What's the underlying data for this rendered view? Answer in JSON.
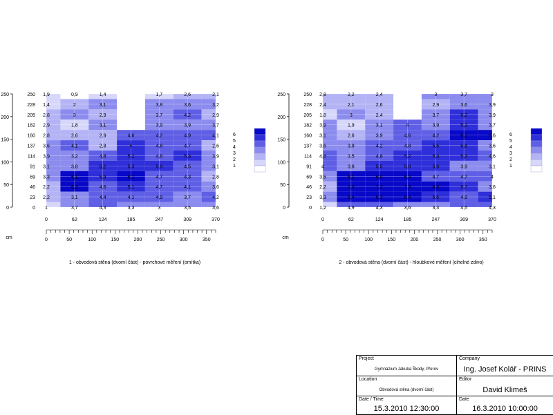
{
  "chart_data": [
    {
      "type": "heatmap",
      "title": "1 - obvodová stěna (dvorní část) - povrchové měření (omítka)",
      "ylabel_ticks": [
        "0",
        "50",
        "100",
        "150",
        "200",
        "250"
      ],
      "row_labels": [
        "250",
        "228",
        "205",
        "182",
        "160",
        "137",
        "114",
        "91",
        "69",
        "46",
        "23",
        "0"
      ],
      "col_labels": [
        "0",
        "62",
        "124",
        "185",
        "247",
        "309",
        "370"
      ],
      "x_unit": "cm",
      "x_ticks": [
        "0",
        "50",
        "100",
        "150",
        "200",
        "250",
        "300",
        "350"
      ],
      "legend_levels": [
        "6",
        "5",
        "4",
        "3",
        "2",
        "1"
      ],
      "values": [
        [
          "1,9",
          "0,9",
          "1,4",
          "",
          "1,7",
          "2,6",
          "2,1"
        ],
        [
          "1,4",
          "2",
          "3,1",
          "",
          "3,8",
          "3,6",
          "3,2"
        ],
        [
          "2,8",
          "3",
          "2,9",
          "",
          "3,7",
          "4,2",
          "2,9"
        ],
        [
          "2,9",
          "1,8",
          "3,1",
          "",
          "3,9",
          "3,9",
          "3,7"
        ],
        [
          "2,8",
          "2,6",
          "2,9",
          "4,6",
          "4,2",
          "4,9",
          "4,1"
        ],
        [
          "3,6",
          "4,1",
          "2,8",
          "5",
          "4,8",
          "4,7",
          "2,6"
        ],
        [
          "3,9",
          "3,2",
          "4,8",
          "5,2",
          "4,8",
          "5,3",
          "3,9"
        ],
        [
          "3,1",
          "3,8",
          "5,2",
          "5,3",
          "5,9",
          "4,5",
          "3,1"
        ],
        [
          "3,3",
          "6,1",
          "5,9",
          "6,1",
          "4,7",
          "4,3",
          "2,8"
        ],
        [
          "2,2",
          "6,3",
          "4,6",
          "5,1",
          "4,7",
          "4,1",
          "3,6"
        ],
        [
          "2,2",
          "3,1",
          "4,4",
          "4,1",
          "4,9",
          "3,7",
          "4,2"
        ],
        [
          "1",
          "3,7",
          "4,3",
          "3,3",
          "3",
          "3,5",
          "3,6"
        ]
      ]
    },
    {
      "type": "heatmap",
      "title": "2 - obvodová stěna (dvorní část) - hloubkové měření (cihelné zdivo)",
      "ylabel_ticks": [
        "0",
        "50",
        "100",
        "150",
        "200",
        "250"
      ],
      "row_labels": [
        "250",
        "228",
        "205",
        "182",
        "160",
        "137",
        "114",
        "91",
        "69",
        "46",
        "23",
        "0"
      ],
      "col_labels": [
        "0",
        "62",
        "124",
        "185",
        "247",
        "309",
        "370"
      ],
      "x_unit": "cm",
      "x_ticks": [
        "0",
        "50",
        "100",
        "150",
        "200",
        "250",
        "300",
        "350"
      ],
      "legend_levels": [
        "6",
        "5",
        "4",
        "3",
        "2",
        "1"
      ],
      "values": [
        [
          "2,8",
          "2,2",
          "2,4",
          "",
          "3",
          "3,7",
          "3"
        ],
        [
          "2,4",
          "2,1",
          "2,6",
          "",
          "2,9",
          "3,6",
          "3,9"
        ],
        [
          "1,8",
          "3",
          "2,4",
          "",
          "3,7",
          "5,2",
          "3,9"
        ],
        [
          "3,9",
          "1,9",
          "3,1",
          "4",
          "3,9",
          "5,1",
          "3,7"
        ],
        [
          "3,1",
          "2,6",
          "3,9",
          "4,6",
          "4,2",
          "6,1",
          "6,6"
        ],
        [
          "3,6",
          "3,9",
          "4,2",
          "4,8",
          "5,5",
          "5,8",
          "3,6"
        ],
        [
          "4,8",
          "3,5",
          "4,8",
          "5,2",
          "5,3",
          "5,3",
          "4,6"
        ],
        [
          "4",
          "3,8",
          "5,5",
          "5,8",
          "5,9",
          "3,9",
          "3,1"
        ],
        [
          "3,5",
          "6,1",
          "6,9",
          "6,3",
          "4,7",
          "4,7",
          "4"
        ],
        [
          "2,2",
          "7,3",
          "7,2",
          "7,3",
          "6,3",
          "5,7",
          "3,6"
        ],
        [
          "3,3",
          "6,4",
          "6,3",
          "6,4",
          "5,6",
          "4,9",
          "5,1"
        ],
        [
          "1,2",
          "4,9",
          "4,3",
          "3,6",
          "3,3",
          "4,5",
          "4,3"
        ]
      ]
    }
  ],
  "title_block": {
    "project_label": "Project",
    "project_value": "Gymnázium Jakuba Škody, Přerov",
    "company_label": "Company",
    "company_value": "Ing. Josef Kolář - PRINS",
    "location_label": "Location",
    "location_value": "Obvodová stěna (dvorní část)",
    "editor_label": "Editor",
    "editor_value": "David Klimeš",
    "datetime_label": "Date / Time",
    "datetime_value": "15.3.2010 12:30:00",
    "date_label": "Date",
    "date_value": "16.3.2010 10:00:00"
  },
  "colors": {
    "level_1": "#ffffff",
    "level_2": "#d7d7fb",
    "level_3": "#b3b3f5",
    "level_4": "#8c8cef",
    "level_5": "#5f5fe6",
    "level_6": "#2f2fda",
    "level_7": "#0808c8"
  }
}
